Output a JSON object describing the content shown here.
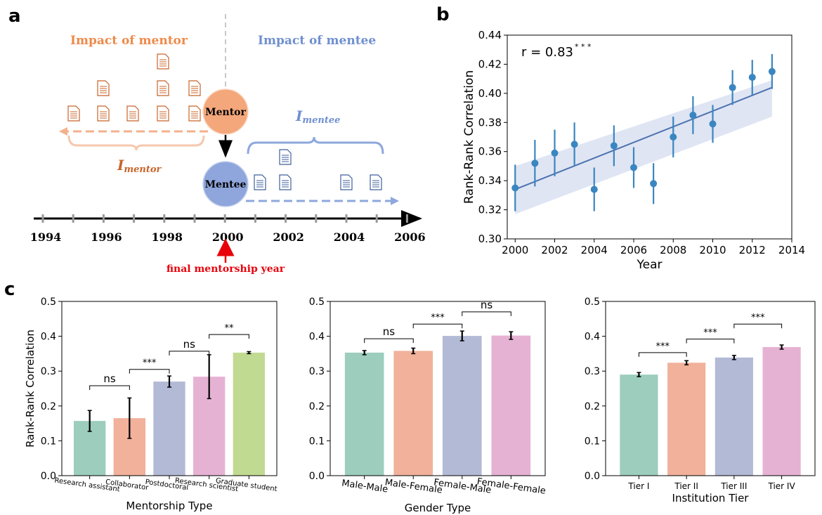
{
  "panels": {
    "a": "a",
    "b": "b",
    "c": "c"
  },
  "schematic": {
    "impact_mentor": "Impact of mentor",
    "impact_mentee": "Impact of mentee",
    "mentor": "Mentor",
    "mentee": "Mentee",
    "i_letter": "I",
    "i_mentor_sub": "mentor",
    "i_mentee_sub": "mentee",
    "years": [
      "1994",
      "1996",
      "1998",
      "2000",
      "2002",
      "2004",
      "2006"
    ],
    "final_label": "final mentorship year",
    "colors": {
      "mentor": "#ee8a4a",
      "mentee": "#6f8fd0",
      "mentor_circle": "#f3a77b",
      "mentee_circle": "#8fa6dc",
      "paper_mentor": "#c8642a",
      "paper_mentee": "#3f5f9c",
      "red": "#e8000b"
    }
  },
  "chart_data": [
    {
      "id": "b",
      "type": "scatter",
      "title": "",
      "xlabel": "Year",
      "ylabel": "Rank-Rank Correlation",
      "annotation_r": "r = 0.83",
      "annotation_stars": "* * *",
      "xlim": [
        1999.6,
        2014
      ],
      "ylim": [
        0.3,
        0.44
      ],
      "xticks": [
        "2000",
        "2002",
        "2004",
        "2006",
        "2008",
        "2010",
        "2012",
        "2014"
      ],
      "yticks": [
        "0.30",
        "0.32",
        "0.34",
        "0.36",
        "0.38",
        "0.40",
        "0.42",
        "0.44"
      ],
      "x": [
        2000,
        2001,
        2002,
        2003,
        2004,
        2005,
        2006,
        2007,
        2008,
        2009,
        2010,
        2011,
        2012,
        2013
      ],
      "y": [
        0.335,
        0.352,
        0.359,
        0.365,
        0.334,
        0.364,
        0.349,
        0.338,
        0.37,
        0.385,
        0.379,
        0.404,
        0.411,
        0.415
      ],
      "err": [
        0.016,
        0.016,
        0.016,
        0.015,
        0.015,
        0.014,
        0.014,
        0.014,
        0.014,
        0.013,
        0.013,
        0.012,
        0.012,
        0.012
      ],
      "fit": {
        "x0": 2000,
        "y0": 0.334,
        "x1": 2013,
        "y1": 0.404
      },
      "band": {
        "lower": [
          0.317,
          0.384
        ],
        "upper": [
          0.35,
          0.409
        ]
      },
      "grid": false
    },
    {
      "id": "c1",
      "type": "bar",
      "xlabel": "Mentorship Type",
      "ylabel": "Rank-Rank Correlation",
      "ylim": [
        0,
        0.5
      ],
      "yticks": [
        "0.0",
        "0.1",
        "0.2",
        "0.3",
        "0.4",
        "0.5"
      ],
      "categories": [
        "Research assistant",
        "Collaborator",
        "Postdoctoral",
        "Research scientist",
        "Graduate student"
      ],
      "values": [
        0.157,
        0.165,
        0.27,
        0.284,
        0.353
      ],
      "err": [
        0.03,
        0.058,
        0.016,
        0.063,
        0.003
      ],
      "colors": [
        "#9ccdbd",
        "#f1b19a",
        "#b2bad6",
        "#e6b2d3",
        "#c1da91"
      ],
      "sig": [
        {
          "a": 0,
          "b": 1,
          "y": 0.258,
          "label": "ns"
        },
        {
          "a": 1,
          "b": 2,
          "y": 0.305,
          "label": "***"
        },
        {
          "a": 2,
          "b": 3,
          "y": 0.357,
          "label": "ns"
        },
        {
          "a": 3,
          "b": 4,
          "y": 0.405,
          "label": "**"
        }
      ]
    },
    {
      "id": "c2",
      "type": "bar",
      "xlabel": "Gender Type",
      "ylabel": "",
      "ylim": [
        0,
        0.5
      ],
      "yticks": [
        "0.0",
        "0.1",
        "0.2",
        "0.3",
        "0.4",
        "0.5"
      ],
      "categories": [
        "Male-Male",
        "Male-Female",
        "Female-Male",
        "Female-Female"
      ],
      "values": [
        0.353,
        0.358,
        0.401,
        0.402
      ],
      "err": [
        0.006,
        0.008,
        0.014,
        0.011
      ],
      "colors": [
        "#9ccdbd",
        "#f1b19a",
        "#b2bad6",
        "#e6b2d3"
      ],
      "sig": [
        {
          "a": 0,
          "b": 1,
          "y": 0.393,
          "label": "ns"
        },
        {
          "a": 1,
          "b": 2,
          "y": 0.435,
          "label": "***"
        },
        {
          "a": 2,
          "b": 3,
          "y": 0.47,
          "label": "ns"
        }
      ]
    },
    {
      "id": "c3",
      "type": "bar",
      "xlabel": "Institution Tier",
      "ylabel": "",
      "ylim": [
        0,
        0.5
      ],
      "yticks": [
        "0.0",
        "0.1",
        "0.2",
        "0.3",
        "0.4",
        "0.5"
      ],
      "categories": [
        "Tier I",
        "Tier II",
        "Tier III",
        "Tier IV"
      ],
      "values": [
        0.29,
        0.324,
        0.339,
        0.369
      ],
      "err": [
        0.006,
        0.006,
        0.006,
        0.006
      ],
      "colors": [
        "#9ccdbd",
        "#f1b19a",
        "#b2bad6",
        "#e6b2d3"
      ],
      "sig": [
        {
          "a": 0,
          "b": 1,
          "y": 0.353,
          "label": "***"
        },
        {
          "a": 1,
          "b": 2,
          "y": 0.392,
          "label": "***"
        },
        {
          "a": 2,
          "b": 3,
          "y": 0.435,
          "label": "***"
        }
      ]
    }
  ]
}
